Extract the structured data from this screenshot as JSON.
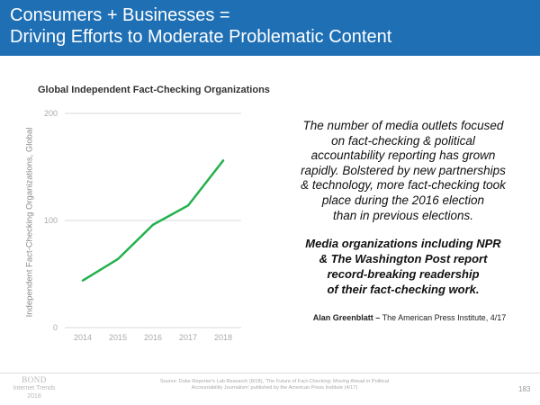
{
  "header": {
    "title_line1": "Consumers + Businesses =",
    "title_line2": "Driving Efforts to Moderate Problematic Content"
  },
  "colors": {
    "header_bg": "#1f6fb4",
    "line": "#22b14c",
    "grid": "#d9d9d9",
    "tick": "#aaaaaa"
  },
  "chart_data": {
    "type": "line",
    "title": "Global Independent Fact-Checking Organizations",
    "ylabel": "Independent Fact-Checking Organizations, Global",
    "xlabel": "",
    "x": [
      2014,
      2015,
      2016,
      2017,
      2018
    ],
    "x_tick_labels": [
      "2014",
      "2015",
      "2016",
      "2017",
      "2018"
    ],
    "y_tick_labels": [
      "0",
      "100",
      "200"
    ],
    "ylim": [
      0,
      200
    ],
    "grid": true,
    "series": [
      {
        "points": [
          [
            2014,
            44
          ],
          [
            2015,
            64
          ],
          [
            2016,
            96
          ],
          [
            2017,
            114
          ],
          [
            2018,
            156
          ]
        ]
      }
    ]
  },
  "quote": {
    "lines": [
      "The number of media outlets focused",
      "on fact-checking & political",
      "accountability reporting has grown",
      "rapidly. Bolstered by new partnerships",
      "& technology, more fact-checking took",
      "place during the 2016 election",
      "than in previous elections."
    ],
    "bold_lines": [
      "Media organizations including NPR",
      "& The Washington Post report",
      "record-breaking readership",
      "of their fact-checking work."
    ],
    "attribution_name": "Alan Greenblatt –",
    "attribution_source": "The American Press Institute, 4/17"
  },
  "footer": {
    "logo_brand": "BOND",
    "logo_line2": "Internet Trends",
    "logo_line3": "2018",
    "source_line1": "Source: Duke Reporter's Lab Research (8/18), 'The Future of Fact-Checking: Moving Ahead in Political",
    "source_line2": "Accountability Journalism' published by the American Press Institute (4/17)",
    "page_number": "183"
  }
}
